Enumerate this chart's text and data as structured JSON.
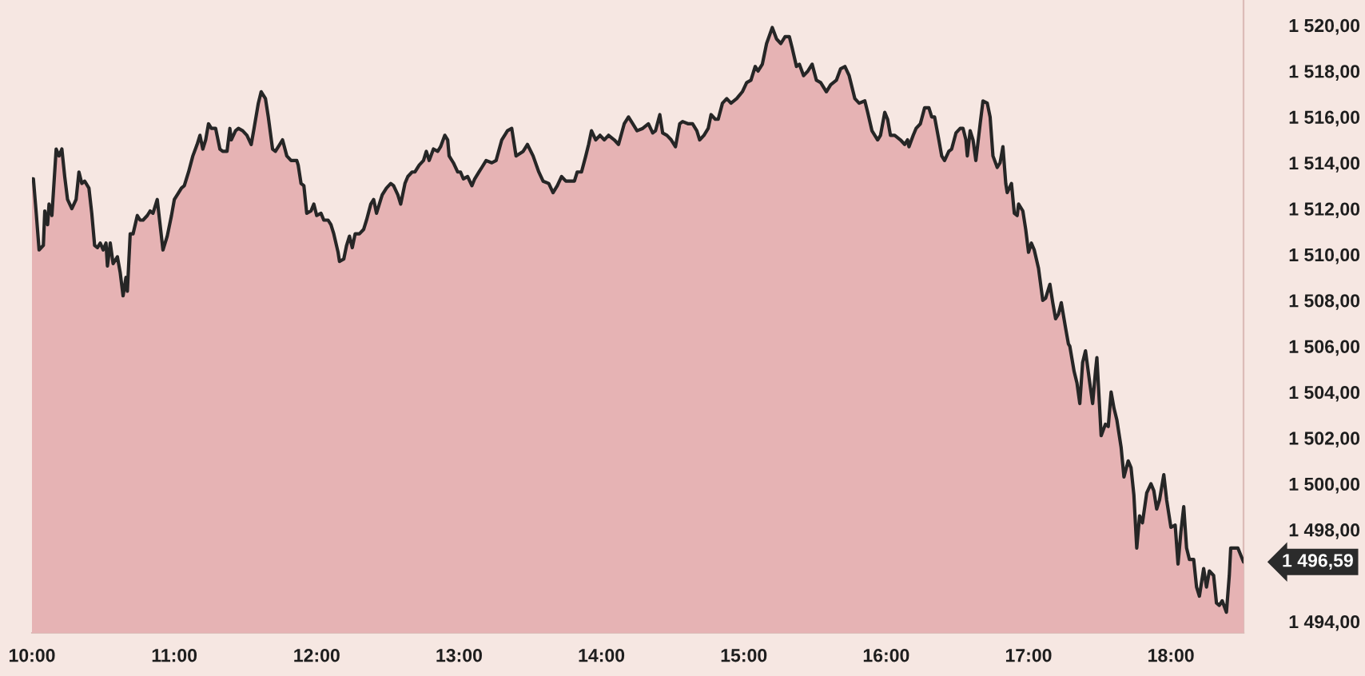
{
  "chart_data": {
    "type": "area",
    "x": [
      10.0,
      10.01,
      10.03,
      10.05,
      10.08,
      10.09,
      10.11,
      10.12,
      10.14,
      10.17,
      10.19,
      10.21,
      10.23,
      10.25,
      10.28,
      10.31,
      10.33,
      10.35,
      10.37,
      10.4,
      10.42,
      10.44,
      10.46,
      10.48,
      10.5,
      10.52,
      10.53,
      10.55,
      10.57,
      10.6,
      10.62,
      10.64,
      10.66,
      10.67,
      10.69,
      10.71,
      10.74,
      10.76,
      10.78,
      10.81,
      10.83,
      10.85,
      10.88,
      10.9,
      10.92,
      10.95,
      10.98,
      11.0,
      11.03,
      11.05,
      11.07,
      11.1,
      11.13,
      11.16,
      11.18,
      11.2,
      11.22,
      11.24,
      11.26,
      11.29,
      11.32,
      11.34,
      11.37,
      11.39,
      11.4,
      11.43,
      11.45,
      11.48,
      11.51,
      11.54,
      11.56,
      11.59,
      11.61,
      11.64,
      11.66,
      11.69,
      11.71,
      11.74,
      11.76,
      11.79,
      11.82,
      11.86,
      11.87,
      11.89,
      11.91,
      11.93,
      11.96,
      11.98,
      12.0,
      12.03,
      12.05,
      12.08,
      12.1,
      12.12,
      12.15,
      12.16,
      12.19,
      12.21,
      12.23,
      12.25,
      12.27,
      12.3,
      12.33,
      12.35,
      12.38,
      12.4,
      12.42,
      12.46,
      12.49,
      12.52,
      12.54,
      12.57,
      12.59,
      12.62,
      12.64,
      12.67,
      12.69,
      12.72,
      12.75,
      12.77,
      12.79,
      12.82,
      12.85,
      12.87,
      12.9,
      12.92,
      12.93,
      12.96,
      12.99,
      13.01,
      13.03,
      13.06,
      13.09,
      13.11,
      13.14,
      13.16,
      13.19,
      13.23,
      13.26,
      13.3,
      13.34,
      13.37,
      13.4,
      13.45,
      13.48,
      13.52,
      13.56,
      13.59,
      13.63,
      13.66,
      13.69,
      13.72,
      13.75,
      13.81,
      13.83,
      13.86,
      13.89,
      13.91,
      13.93,
      13.96,
      13.99,
      14.02,
      14.05,
      14.09,
      14.12,
      14.16,
      14.19,
      14.22,
      14.25,
      14.29,
      14.33,
      14.36,
      14.38,
      14.41,
      14.43,
      14.46,
      14.49,
      14.52,
      14.55,
      14.57,
      14.61,
      14.64,
      14.67,
      14.69,
      14.72,
      14.75,
      14.77,
      14.8,
      14.82,
      14.85,
      14.88,
      14.91,
      14.95,
      14.99,
      15.02,
      15.05,
      15.08,
      15.1,
      15.13,
      15.16,
      15.2,
      15.23,
      15.26,
      15.29,
      15.32,
      15.34,
      15.37,
      15.39,
      15.42,
      15.45,
      15.48,
      15.51,
      15.54,
      15.58,
      15.61,
      15.65,
      15.68,
      15.71,
      15.74,
      15.78,
      15.81,
      15.85,
      15.87,
      15.9,
      15.94,
      15.96,
      15.99,
      16.01,
      16.03,
      16.06,
      16.1,
      16.13,
      16.15,
      16.16,
      16.19,
      16.21,
      16.24,
      16.27,
      16.3,
      16.32,
      16.34,
      16.37,
      16.39,
      16.41,
      16.44,
      16.46,
      16.49,
      16.52,
      16.54,
      16.56,
      16.57,
      16.59,
      16.61,
      16.63,
      16.66,
      16.68,
      16.71,
      16.73,
      16.75,
      16.78,
      16.8,
      16.82,
      16.84,
      16.85,
      16.88,
      16.9,
      16.92,
      16.93,
      16.96,
      16.98,
      17.0,
      17.02,
      17.04,
      17.07,
      17.1,
      17.12,
      17.15,
      17.17,
      17.19,
      17.21,
      17.23,
      17.26,
      17.28,
      17.29,
      17.32,
      17.34,
      17.36,
      17.38,
      17.4,
      17.43,
      17.45,
      17.47,
      17.48,
      17.51,
      17.54,
      17.56,
      17.58,
      17.6,
      17.62,
      17.65,
      17.67,
      17.7,
      17.72,
      17.74,
      17.76,
      17.78,
      17.8,
      17.83,
      17.86,
      17.88,
      17.9,
      17.92,
      17.95,
      17.97,
      18.0,
      18.03,
      18.05,
      18.07,
      18.09,
      18.11,
      18.13,
      18.16,
      18.18,
      18.2,
      18.23,
      18.25,
      18.27,
      18.3,
      18.32,
      18.34,
      18.36,
      18.39,
      18.41,
      18.42,
      18.47,
      18.49,
      18.51
    ],
    "series": [
      {
        "color": "#e6b3b4",
        "values": [
          1513.3,
          1513.3,
          1511.8,
          1510.2,
          1510.4,
          1511.9,
          1511.3,
          1512.2,
          1511.7,
          1514.6,
          1514.3,
          1514.6,
          1513.4,
          1512.4,
          1512.0,
          1512.4,
          1513.6,
          1513.1,
          1513.2,
          1512.9,
          1511.8,
          1510.4,
          1510.3,
          1510.5,
          1510.2,
          1510.5,
          1509.5,
          1510.5,
          1509.6,
          1509.9,
          1509.2,
          1508.2,
          1509.0,
          1508.4,
          1510.9,
          1510.9,
          1511.7,
          1511.5,
          1511.5,
          1511.7,
          1511.9,
          1511.8,
          1512.4,
          1511.3,
          1510.2,
          1510.8,
          1511.7,
          1512.4,
          1512.7,
          1512.9,
          1513.0,
          1513.6,
          1514.3,
          1514.8,
          1515.2,
          1514.6,
          1515.0,
          1515.7,
          1515.5,
          1515.5,
          1514.6,
          1514.5,
          1514.5,
          1515.5,
          1515.0,
          1515.4,
          1515.5,
          1515.4,
          1515.2,
          1514.8,
          1515.5,
          1516.6,
          1517.1,
          1516.8,
          1516.0,
          1514.6,
          1514.5,
          1514.8,
          1515.0,
          1514.3,
          1514.1,
          1514.1,
          1513.9,
          1513.1,
          1513.0,
          1511.8,
          1511.9,
          1512.2,
          1511.7,
          1511.8,
          1511.5,
          1511.5,
          1511.3,
          1510.9,
          1510.1,
          1509.7,
          1509.8,
          1510.4,
          1510.8,
          1510.3,
          1510.9,
          1510.9,
          1511.1,
          1511.5,
          1512.2,
          1512.4,
          1511.8,
          1512.6,
          1512.9,
          1513.1,
          1513.0,
          1512.6,
          1512.2,
          1513.1,
          1513.4,
          1513.6,
          1513.6,
          1513.9,
          1514.1,
          1514.5,
          1514.1,
          1514.6,
          1514.5,
          1514.7,
          1515.2,
          1515.0,
          1514.3,
          1514.0,
          1513.6,
          1513.6,
          1513.3,
          1513.4,
          1513.0,
          1513.3,
          1513.6,
          1513.8,
          1514.1,
          1514.0,
          1514.1,
          1515.0,
          1515.4,
          1515.5,
          1514.3,
          1514.5,
          1514.8,
          1514.3,
          1513.6,
          1513.2,
          1513.1,
          1512.7,
          1513.0,
          1513.4,
          1513.2,
          1513.2,
          1513.6,
          1513.6,
          1514.3,
          1514.8,
          1515.4,
          1515.0,
          1515.2,
          1515.0,
          1515.2,
          1515.0,
          1514.8,
          1515.7,
          1516.0,
          1515.7,
          1515.4,
          1515.5,
          1515.7,
          1515.3,
          1515.4,
          1516.1,
          1515.3,
          1515.2,
          1515.0,
          1514.7,
          1515.7,
          1515.8,
          1515.7,
          1515.7,
          1515.4,
          1515.0,
          1515.2,
          1515.5,
          1516.1,
          1515.9,
          1515.9,
          1516.6,
          1516.8,
          1516.6,
          1516.8,
          1517.1,
          1517.5,
          1517.6,
          1518.2,
          1518.0,
          1518.3,
          1519.2,
          1519.9,
          1519.4,
          1519.2,
          1519.5,
          1519.5,
          1519.0,
          1518.2,
          1518.3,
          1517.8,
          1518.0,
          1518.3,
          1517.6,
          1517.5,
          1517.1,
          1517.4,
          1517.6,
          1518.1,
          1518.2,
          1517.8,
          1516.8,
          1516.6,
          1516.7,
          1516.2,
          1515.4,
          1515.0,
          1515.2,
          1516.2,
          1515.9,
          1515.2,
          1515.2,
          1515.0,
          1514.8,
          1515.0,
          1514.7,
          1515.2,
          1515.5,
          1515.7,
          1516.4,
          1516.4,
          1516.0,
          1516.0,
          1515.0,
          1514.3,
          1514.1,
          1514.5,
          1514.6,
          1515.3,
          1515.5,
          1515.5,
          1515.0,
          1514.3,
          1515.4,
          1515.0,
          1514.1,
          1515.7,
          1516.7,
          1516.6,
          1516.0,
          1514.3,
          1513.8,
          1514.0,
          1514.7,
          1513.1,
          1512.7,
          1513.1,
          1511.8,
          1511.7,
          1512.2,
          1511.9,
          1511.1,
          1510.1,
          1510.5,
          1510.2,
          1509.4,
          1508.0,
          1508.1,
          1508.7,
          1507.9,
          1507.2,
          1507.4,
          1507.9,
          1506.8,
          1506.1,
          1506.0,
          1504.9,
          1504.4,
          1503.5,
          1505.3,
          1505.8,
          1504.4,
          1503.5,
          1504.9,
          1505.5,
          1502.1,
          1502.6,
          1502.5,
          1504.0,
          1503.3,
          1502.8,
          1501.6,
          1500.3,
          1501.0,
          1500.7,
          1499.5,
          1497.2,
          1498.6,
          1498.3,
          1499.6,
          1500.0,
          1499.7,
          1498.9,
          1499.3,
          1500.4,
          1499.3,
          1498.1,
          1498.2,
          1496.5,
          1497.9,
          1499.0,
          1497.2,
          1496.7,
          1496.7,
          1495.5,
          1495.1,
          1496.3,
          1495.5,
          1496.2,
          1496.0,
          1494.8,
          1494.7,
          1494.9,
          1494.4,
          1496.0,
          1497.2,
          1497.2,
          1496.9,
          1496.59
        ]
      }
    ],
    "xlim": [
      10,
      18.51
    ],
    "xticks": [
      {
        "value": 10,
        "label": "10:00"
      },
      {
        "value": 11,
        "label": "11:00"
      },
      {
        "value": 12,
        "label": "12:00"
      },
      {
        "value": 13,
        "label": "13:00"
      },
      {
        "value": 14,
        "label": "14:00"
      },
      {
        "value": 15,
        "label": "15:00"
      },
      {
        "value": 16,
        "label": "16:00"
      },
      {
        "value": 17,
        "label": "17:00"
      },
      {
        "value": 18,
        "label": "18:00"
      }
    ],
    "ylim": [
      1493.5,
      1521.1
    ],
    "yticks": [
      {
        "value": 1494,
        "label": "1 494,00"
      },
      {
        "value": 1498,
        "label": "1 498,00"
      },
      {
        "value": 1500,
        "label": "1 500,00"
      },
      {
        "value": 1502,
        "label": "1 502,00"
      },
      {
        "value": 1504,
        "label": "1 504,00"
      },
      {
        "value": 1506,
        "label": "1 506,00"
      },
      {
        "value": 1508,
        "label": "1 508,00"
      },
      {
        "value": 1510,
        "label": "1 510,00"
      },
      {
        "value": 1512,
        "label": "1 512,00"
      },
      {
        "value": 1514,
        "label": "1 514,00"
      },
      {
        "value": 1516,
        "label": "1 516,00"
      },
      {
        "value": 1518,
        "label": "1 518,00"
      },
      {
        "value": 1520,
        "label": "1 520,00"
      }
    ],
    "annotations": [
      {
        "text": "1 496,59",
        "x": 18.51,
        "y": 1496.59
      }
    ]
  }
}
